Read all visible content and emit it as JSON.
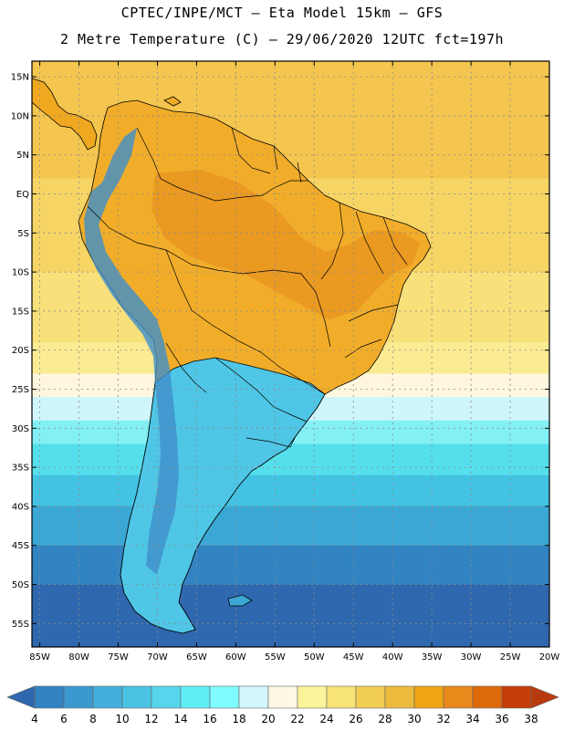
{
  "title": {
    "line1": "CPTEC/INPE/MCT –  Eta Model 15km – GFS",
    "line2": "2 Metre Temperature (C) – 29/06/2020 12UTC fct=197h"
  },
  "map": {
    "lon_range": [
      -86,
      -20
    ],
    "lat_range": [
      -58,
      17
    ],
    "lat_ticks": [
      {
        "value": 15,
        "label": "15N"
      },
      {
        "value": 10,
        "label": "10N"
      },
      {
        "value": 5,
        "label": "5N"
      },
      {
        "value": 0,
        "label": "EQ"
      },
      {
        "value": -5,
        "label": "5S"
      },
      {
        "value": -10,
        "label": "10S"
      },
      {
        "value": -15,
        "label": "15S"
      },
      {
        "value": -20,
        "label": "20S"
      },
      {
        "value": -25,
        "label": "25S"
      },
      {
        "value": -30,
        "label": "30S"
      },
      {
        "value": -35,
        "label": "35S"
      },
      {
        "value": -40,
        "label": "40S"
      },
      {
        "value": -45,
        "label": "45S"
      },
      {
        "value": -50,
        "label": "50S"
      },
      {
        "value": -55,
        "label": "55S"
      }
    ],
    "lon_ticks": [
      {
        "value": -85,
        "label": "85W"
      },
      {
        "value": -80,
        "label": "80W"
      },
      {
        "value": -75,
        "label": "75W"
      },
      {
        "value": -70,
        "label": "70W"
      },
      {
        "value": -65,
        "label": "65W"
      },
      {
        "value": -60,
        "label": "60W"
      },
      {
        "value": -55,
        "label": "55W"
      },
      {
        "value": -50,
        "label": "50W"
      },
      {
        "value": -45,
        "label": "45W"
      },
      {
        "value": -40,
        "label": "40W"
      },
      {
        "value": -35,
        "label": "35W"
      },
      {
        "value": -30,
        "label": "30W"
      },
      {
        "value": -25,
        "label": "25W"
      },
      {
        "value": -20,
        "label": "20W"
      }
    ],
    "bands": [
      {
        "lat_top": 17,
        "lat_bottom": 2,
        "color": "#f4c64f"
      },
      {
        "lat_top": 2,
        "lat_bottom": -10,
        "color": "#f6d565"
      },
      {
        "lat_top": -10,
        "lat_bottom": -19,
        "color": "#f8e07a"
      },
      {
        "lat_top": -19,
        "lat_bottom": -23,
        "color": "#fbeb92"
      },
      {
        "lat_top": -23,
        "lat_bottom": -26,
        "color": "#fef7dd"
      },
      {
        "lat_top": -26,
        "lat_bottom": -29,
        "color": "#cff6fb"
      },
      {
        "lat_top": -29,
        "lat_bottom": -32,
        "color": "#82f0f5"
      },
      {
        "lat_top": -32,
        "lat_bottom": -36,
        "color": "#55dfec"
      },
      {
        "lat_top": -36,
        "lat_bottom": -40,
        "color": "#43c3e3"
      },
      {
        "lat_top": -40,
        "lat_bottom": -45,
        "color": "#3aa7d4"
      },
      {
        "lat_top": -45,
        "lat_bottom": -50,
        "color": "#3183c2"
      },
      {
        "lat_top": -50,
        "lat_bottom": -58,
        "color": "#2f68ae"
      }
    ]
  },
  "colorbar": {
    "labels": [
      "4",
      "6",
      "8",
      "10",
      "12",
      "14",
      "16",
      "18",
      "20",
      "22",
      "24",
      "26",
      "28",
      "30",
      "32",
      "34",
      "36",
      "38"
    ],
    "colors": [
      "#2f68ae",
      "#3183c2",
      "#3a9ad0",
      "#43b0dc",
      "#4bc3e4",
      "#55d6ec",
      "#5feef6",
      "#7ffcff",
      "#d2f7fc",
      "#fdf9e4",
      "#fbf49a",
      "#f7e376",
      "#f1cd53",
      "#ecbb3d",
      "#f0a512",
      "#e9891b",
      "#df6a0c",
      "#c63f08",
      "#b93a0f"
    ]
  }
}
